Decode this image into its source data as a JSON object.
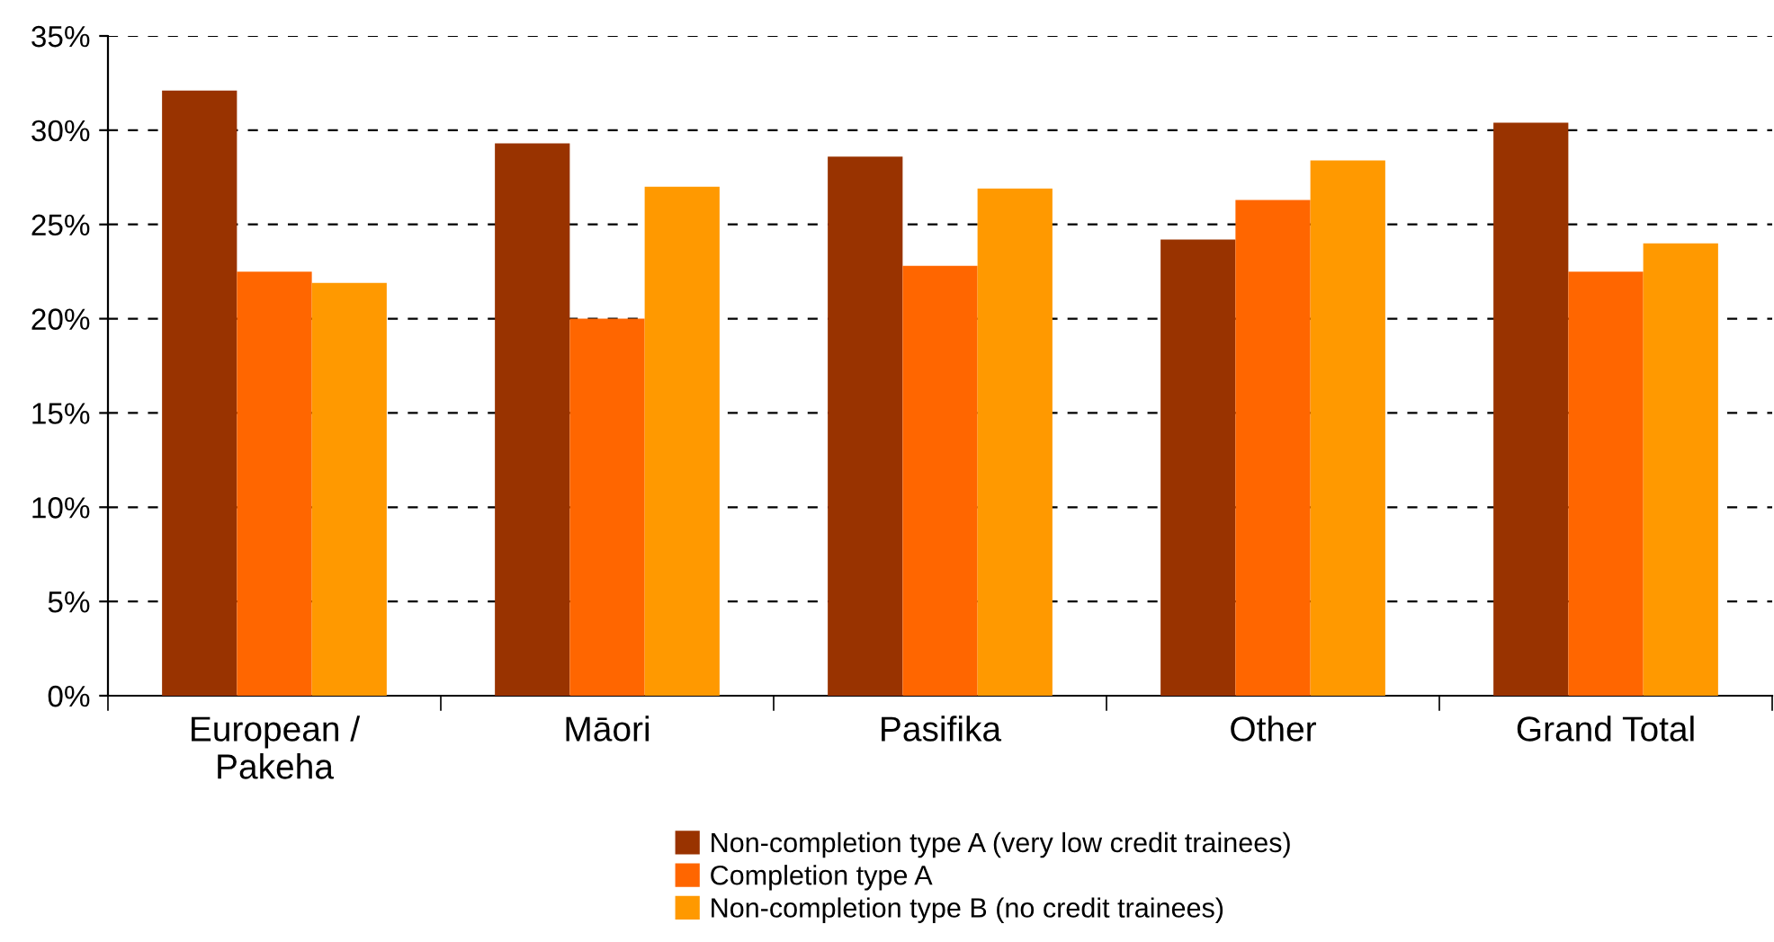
{
  "chart_data": {
    "type": "bar",
    "categories": [
      "European /\nPakeha",
      "Māori",
      "Pasifika",
      "Other",
      "Grand Total"
    ],
    "series": [
      {
        "name": "Non-completion type A (very low credit trainees)",
        "color": "#993300",
        "values": [
          32.1,
          29.3,
          28.6,
          24.2,
          30.4
        ]
      },
      {
        "name": "Completion type A",
        "color": "#ff6600",
        "values": [
          22.5,
          20.0,
          22.8,
          26.3,
          22.5
        ]
      },
      {
        "name": "Non-completion type B (no credit trainees)",
        "color": "#ff9900",
        "values": [
          21.9,
          27.0,
          26.9,
          28.4,
          24.0
        ]
      }
    ],
    "ylim": [
      0,
      35
    ],
    "yticks": [
      {
        "value": 0,
        "label": "0%"
      },
      {
        "value": 5,
        "label": "5%"
      },
      {
        "value": 10,
        "label": "10%"
      },
      {
        "value": 15,
        "label": "15%"
      },
      {
        "value": 20,
        "label": "20%"
      },
      {
        "value": 25,
        "label": "25%"
      },
      {
        "value": 30,
        "label": "30%"
      },
      {
        "value": 35,
        "label": "35%"
      }
    ],
    "grid": "y",
    "legend": "bottom"
  }
}
